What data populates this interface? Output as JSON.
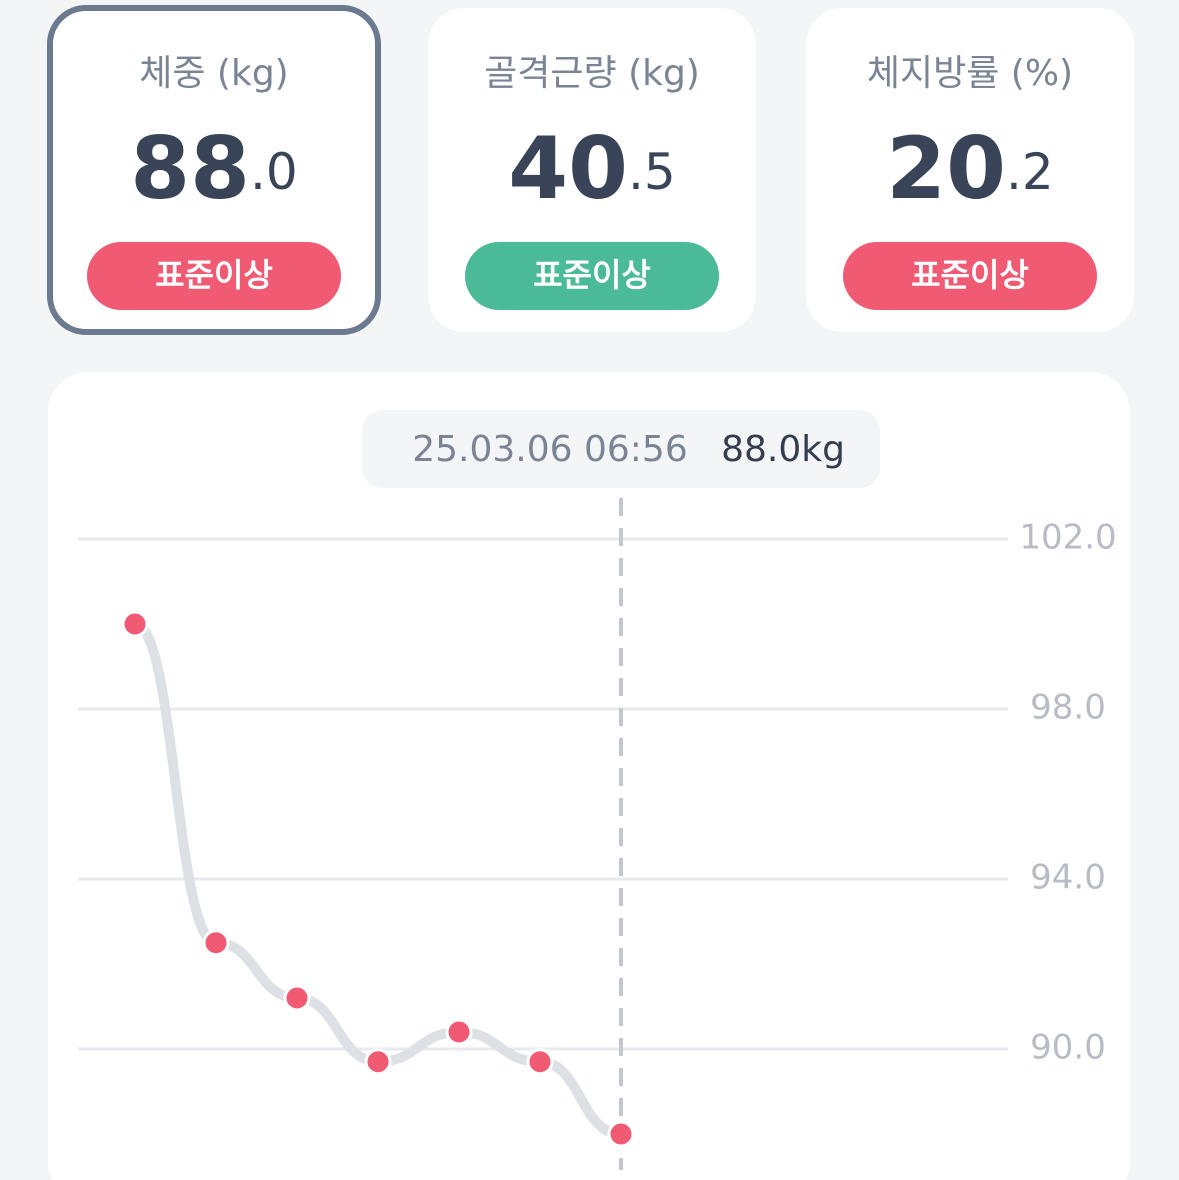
{
  "cards": [
    {
      "label": "체중 (kg)",
      "value_int": "88",
      "value_dec": ".0",
      "badge": "표준이상",
      "badge_color": "#f05a73",
      "selected": true
    },
    {
      "label": "골격근량 (kg)",
      "value_int": "40",
      "value_dec": ".5",
      "badge": "표준이상",
      "badge_color": "#4bba96",
      "selected": false
    },
    {
      "label": "체지방률 (%)",
      "value_int": "20",
      "value_dec": ".2",
      "badge": "표준이상",
      "badge_color": "#f05a73",
      "selected": false
    }
  ],
  "chart_data": {
    "type": "line",
    "categories": [
      null,
      null,
      null,
      null,
      null,
      null,
      null
    ],
    "series": [
      {
        "name": null,
        "color": "#f05a73",
        "values": [
          100.0,
          92.5,
          91.2,
          89.7,
          90.4,
          89.7,
          88.0
        ]
      }
    ],
    "ylim": [
      87,
      102
    ],
    "yticks": [
      {
        "value": 102,
        "label": "102.0"
      },
      {
        "value": 98,
        "label": "98.0"
      },
      {
        "value": 94,
        "label": "94.0"
      },
      {
        "value": 90,
        "label": "90.0"
      }
    ],
    "grid": true,
    "tooltip": {
      "date": "25.03.06 06:56",
      "value": "88.0kg"
    }
  }
}
